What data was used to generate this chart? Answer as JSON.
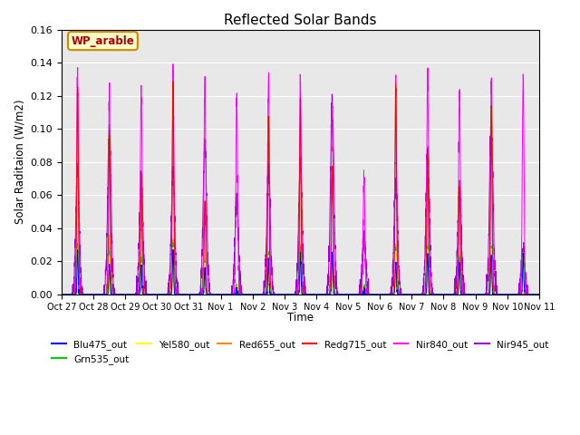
{
  "title": "Reflected Solar Bands",
  "xlabel": "Time",
  "ylabel": "Solar Raditaion (W/m2)",
  "ylim": [
    0,
    0.16
  ],
  "annotation_text": "WP_arable",
  "annotation_bg": "#ffffcc",
  "annotation_border": "#cc8800",
  "annotation_text_color": "#aa0000",
  "background_color": "#e8e8e8",
  "series": [
    {
      "label": "Blu475_out",
      "color": "#0000ff"
    },
    {
      "label": "Grn535_out",
      "color": "#00cc00"
    },
    {
      "label": "Yel580_out",
      "color": "#ffff00"
    },
    {
      "label": "Red655_out",
      "color": "#ff8800"
    },
    {
      "label": "Redg715_out",
      "color": "#ff0000"
    },
    {
      "label": "Nir840_out",
      "color": "#ff00ff"
    },
    {
      "label": "Nir945_out",
      "color": "#9900cc"
    }
  ],
  "n_days": 15,
  "tick_labels": [
    "Oct 27",
    "Oct 28",
    "Oct 29",
    "Oct 30",
    "Oct 31",
    "Nov 1",
    "Nov 2",
    "Nov 3",
    "Nov 4",
    "Nov 5",
    "Nov 6",
    "Nov 7",
    "Nov 8",
    "Nov 9",
    "Nov 10",
    "Nov 11"
  ],
  "peak_heights_nir840": [
    0.135,
    0.126,
    0.125,
    0.135,
    0.128,
    0.12,
    0.133,
    0.13,
    0.115,
    0.068,
    0.128,
    0.129,
    0.123,
    0.131,
    0.131
  ],
  "peak_heights_nir945": [
    0.075,
    0.1,
    0.07,
    0.076,
    0.093,
    0.058,
    0.076,
    0.08,
    0.115,
    0.033,
    0.068,
    0.085,
    0.065,
    0.105,
    0.025
  ],
  "peak_heights_redg715": [
    0.126,
    0.093,
    0.069,
    0.128,
    0.055,
    0.0,
    0.108,
    0.115,
    0.075,
    0.0,
    0.125,
    0.085,
    0.063,
    0.11,
    0.0
  ],
  "peak_heights_red655": [
    0.03,
    0.035,
    0.022,
    0.033,
    0.025,
    0.005,
    0.025,
    0.028,
    0.025,
    0.005,
    0.03,
    0.03,
    0.024,
    0.028,
    0.025
  ],
  "peak_heights_grn535": [
    0.03,
    0.025,
    0.022,
    0.03,
    0.02,
    0.005,
    0.025,
    0.027,
    0.025,
    0.005,
    0.028,
    0.03,
    0.022,
    0.028,
    0.025
  ],
  "peak_heights_yel580": [
    0.028,
    0.022,
    0.018,
    0.028,
    0.018,
    0.004,
    0.022,
    0.025,
    0.022,
    0.004,
    0.025,
    0.027,
    0.02,
    0.025,
    0.022
  ],
  "peak_heights_blu475": [
    0.027,
    0.018,
    0.017,
    0.027,
    0.015,
    0.003,
    0.02,
    0.025,
    0.025,
    0.003,
    0.02,
    0.025,
    0.02,
    0.024,
    0.025
  ]
}
